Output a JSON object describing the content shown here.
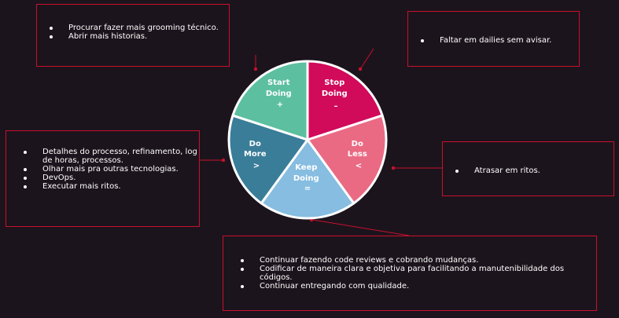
{
  "colors": {
    "background": "#1c141c",
    "border": "#c8102e",
    "start": "#5cbfa0",
    "stop": "#d10a5a",
    "less": "#ea6a84",
    "keep": "#86bde0",
    "more": "#3a7d99"
  },
  "segments": {
    "start": [
      "Start",
      "Doing",
      "+"
    ],
    "stop": [
      "Stop",
      "Doing",
      "–"
    ],
    "less": [
      "Do",
      "Less",
      "<"
    ],
    "keep": [
      "Keep",
      "Doing",
      "="
    ],
    "more": [
      "Do",
      "More",
      ">"
    ]
  },
  "notes": {
    "start": [
      "Procurar fazer mais grooming técnico.",
      "Abrir mais historias."
    ],
    "stop": [
      "Faltar em dailies sem avisar."
    ],
    "more": [
      "Detalhes do processo, refinamento, log de horas, processos.",
      "Olhar mais pra outras tecnologias.",
      "DevOps.",
      "Executar mais ritos."
    ],
    "less": [
      "Atrasar em ritos."
    ],
    "keep": [
      "Continuar fazendo code reviews e cobrando mudanças.",
      "Codificar de maneira clara e objetiva para facilitando a manutenibilidade dos códigos.",
      "Continuar entregando com qualidade."
    ]
  }
}
